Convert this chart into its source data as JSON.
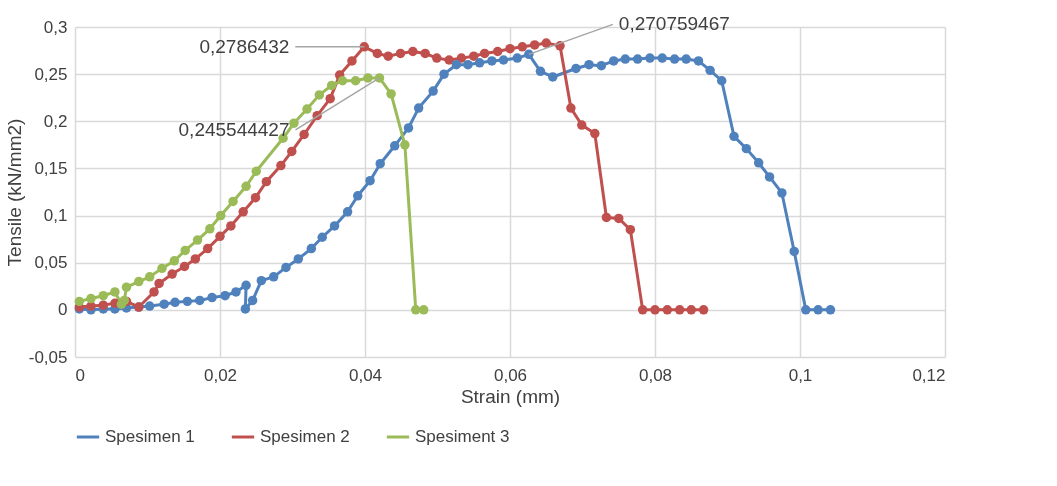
{
  "chart_data": {
    "type": "line",
    "xlabel": "Strain (mm)",
    "ylabel": "Tensile (kN/mm2)",
    "xlim": [
      0,
      0.12
    ],
    "ylim": [
      -0.05,
      0.3
    ],
    "xticks": [
      {
        "value": 0,
        "label": "0"
      },
      {
        "value": 0.02,
        "label": "0,02"
      },
      {
        "value": 0.04,
        "label": "0,04"
      },
      {
        "value": 0.06,
        "label": "0,06"
      },
      {
        "value": 0.08,
        "label": "0,08"
      },
      {
        "value": 0.1,
        "label": "0,1"
      },
      {
        "value": 0.12,
        "label": "0,12"
      }
    ],
    "yticks": [
      {
        "value": -0.05,
        "label": "-0,05"
      },
      {
        "value": 0,
        "label": "0"
      },
      {
        "value": 0.05,
        "label": "0,05"
      },
      {
        "value": 0.1,
        "label": "0,1"
      },
      {
        "value": 0.15,
        "label": "0,15"
      },
      {
        "value": 0.2,
        "label": "0,2"
      },
      {
        "value": 0.25,
        "label": "0,25"
      },
      {
        "value": 0.3,
        "label": "0,3"
      }
    ],
    "grid": true,
    "legend": "bottom",
    "marker": "circle",
    "line_style": "solid",
    "series": [
      {
        "name": "Spesimen 1",
        "color": "#4f81bd",
        "x": [
          0.0006,
          0.0022,
          0.0039,
          0.0055,
          0.0071,
          0.0088,
          0.0103,
          0.0123,
          0.0138,
          0.0155,
          0.0172,
          0.0189,
          0.0207,
          0.0222,
          0.0236,
          0.0235,
          0.0245,
          0.0257,
          0.0274,
          0.0291,
          0.0308,
          0.0326,
          0.0341,
          0.0358,
          0.0376,
          0.039,
          0.0407,
          0.0421,
          0.0441,
          0.046,
          0.0474,
          0.0494,
          0.0509,
          0.0526,
          0.0542,
          0.0558,
          0.0575,
          0.0591,
          0.061,
          0.0626,
          0.0642,
          0.0659,
          0.0691,
          0.0709,
          0.0726,
          0.0743,
          0.0759,
          0.0776,
          0.0793,
          0.081,
          0.0827,
          0.0843,
          0.086,
          0.0876,
          0.0892,
          0.0909,
          0.0926,
          0.0943,
          0.0958,
          0.0975,
          0.0992,
          0.1008,
          0.1025,
          0.1042
        ],
        "values": [
          0.001,
          0.0,
          0.001,
          0.001,
          0.002,
          0.003,
          0.004,
          0.006,
          0.008,
          0.009,
          0.01,
          0.013,
          0.015,
          0.019,
          0.026,
          0.001,
          0.01,
          0.031,
          0.035,
          0.045,
          0.054,
          0.065,
          0.077,
          0.089,
          0.104,
          0.121,
          0.137,
          0.155,
          0.174,
          0.193,
          0.214,
          0.232,
          0.25,
          0.26,
          0.26,
          0.262,
          0.264,
          0.265,
          0.267,
          0.271,
          0.253,
          0.247,
          0.256,
          0.26,
          0.259,
          0.264,
          0.266,
          0.266,
          0.267,
          0.267,
          0.266,
          0.266,
          0.264,
          0.254,
          0.243,
          0.184,
          0.171,
          0.156,
          0.141,
          0.124,
          0.062,
          0.0,
          0.0,
          0.0
        ]
      },
      {
        "name": "Spesimen 2",
        "color": "#c0504d",
        "x": [
          0.0006,
          0.0022,
          0.0039,
          0.0055,
          0.0071,
          0.0088,
          0.0109,
          0.0116,
          0.0134,
          0.0151,
          0.0166,
          0.0183,
          0.02,
          0.0215,
          0.0232,
          0.0249,
          0.0264,
          0.0284,
          0.0299,
          0.0316,
          0.0334,
          0.0352,
          0.0365,
          0.0382,
          0.0399,
          0.0417,
          0.0432,
          0.0449,
          0.0466,
          0.0483,
          0.0499,
          0.0516,
          0.0533,
          0.055,
          0.0565,
          0.0583,
          0.06,
          0.0617,
          0.0634,
          0.065,
          0.0669,
          0.0684,
          0.0699,
          0.0717,
          0.0733,
          0.075,
          0.0766,
          0.0783,
          0.08,
          0.0817,
          0.0834,
          0.085,
          0.0867
        ],
        "values": [
          0.003,
          0.004,
          0.005,
          0.007,
          0.009,
          0.003,
          0.019,
          0.028,
          0.038,
          0.046,
          0.054,
          0.065,
          0.078,
          0.089,
          0.104,
          0.119,
          0.136,
          0.153,
          0.168,
          0.186,
          0.206,
          0.224,
          0.249,
          0.264,
          0.279,
          0.272,
          0.269,
          0.272,
          0.274,
          0.272,
          0.267,
          0.265,
          0.267,
          0.269,
          0.272,
          0.274,
          0.277,
          0.279,
          0.281,
          0.283,
          0.28,
          0.214,
          0.196,
          0.187,
          0.098,
          0.097,
          0.085,
          0.0,
          0.0,
          0.0,
          0.0,
          0.0,
          0.0
        ]
      },
      {
        "name": "Spesiment 3",
        "color": "#9bbb59",
        "x": [
          0.0006,
          0.0022,
          0.0039,
          0.0055,
          0.0064,
          0.0068,
          0.0071,
          0.0088,
          0.0103,
          0.012,
          0.0137,
          0.0152,
          0.0169,
          0.0186,
          0.0201,
          0.0218,
          0.0236,
          0.025,
          0.0287,
          0.0302,
          0.032,
          0.0337,
          0.0354,
          0.0369,
          0.0387,
          0.0404,
          0.042,
          0.0436,
          0.0455,
          0.047,
          0.0481
        ],
        "values": [
          0.009,
          0.012,
          0.015,
          0.019,
          0.006,
          0.01,
          0.024,
          0.03,
          0.035,
          0.044,
          0.052,
          0.063,
          0.074,
          0.086,
          0.1,
          0.115,
          0.131,
          0.147,
          0.182,
          0.198,
          0.213,
          0.228,
          0.238,
          0.243,
          0.243,
          0.246,
          0.246,
          0.229,
          0.175,
          0.0,
          0.0
        ]
      }
    ],
    "annotations": [
      {
        "text": "0,2786432",
        "x": 0.0399,
        "y": 0.279
      },
      {
        "text": "0,270759467",
        "x": 0.0626,
        "y": 0.271
      },
      {
        "text": "0,245544427",
        "x": 0.042,
        "y": 0.246
      }
    ]
  }
}
